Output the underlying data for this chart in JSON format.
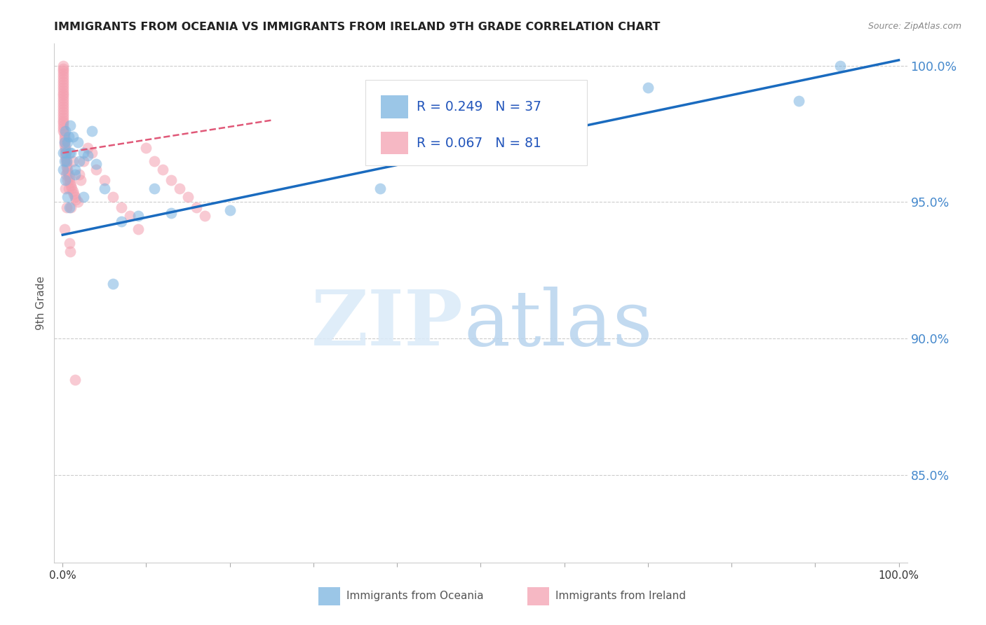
{
  "title": "IMMIGRANTS FROM OCEANIA VS IMMIGRANTS FROM IRELAND 9TH GRADE CORRELATION CHART",
  "source": "Source: ZipAtlas.com",
  "ylabel": "9th Grade",
  "ytick_labels": [
    "85.0%",
    "90.0%",
    "95.0%",
    "100.0%"
  ],
  "ytick_values": [
    0.85,
    0.9,
    0.95,
    1.0
  ],
  "xlim": [
    0.0,
    1.0
  ],
  "ylim": [
    0.818,
    1.008
  ],
  "legend_label1": "Immigrants from Oceania",
  "legend_label2": "Immigrants from Ireland",
  "R_oceania": 0.249,
  "N_oceania": 37,
  "R_ireland": 0.067,
  "N_ireland": 81,
  "color_oceania": "#7ab3e0",
  "color_ireland": "#f4a0b0",
  "color_line_oceania": "#1a6bbf",
  "color_line_ireland": "#e05878",
  "oceania_x": [
    0.002,
    0.003,
    0.004,
    0.005,
    0.006,
    0.007,
    0.008,
    0.009,
    0.01,
    0.012,
    0.015,
    0.018,
    0.02,
    0.025,
    0.03,
    0.04,
    0.05,
    0.06,
    0.07,
    0.09,
    0.11,
    0.13,
    0.2,
    0.38,
    0.6,
    0.7,
    0.88,
    0.93,
    0.001,
    0.001,
    0.002,
    0.003,
    0.006,
    0.008,
    0.015,
    0.025,
    0.035
  ],
  "oceania_y": [
    0.972,
    0.976,
    0.968,
    0.965,
    0.972,
    0.974,
    0.968,
    0.978,
    0.968,
    0.974,
    0.96,
    0.972,
    0.965,
    0.952,
    0.967,
    0.964,
    0.955,
    0.92,
    0.943,
    0.945,
    0.955,
    0.946,
    0.947,
    0.955,
    0.987,
    0.992,
    0.987,
    1.0,
    0.962,
    0.968,
    0.965,
    0.958,
    0.952,
    0.948,
    0.962,
    0.968,
    0.976
  ],
  "ireland_x": [
    0.001,
    0.001,
    0.001,
    0.001,
    0.001,
    0.001,
    0.001,
    0.001,
    0.001,
    0.001,
    0.001,
    0.001,
    0.001,
    0.001,
    0.001,
    0.001,
    0.001,
    0.001,
    0.001,
    0.001,
    0.001,
    0.001,
    0.001,
    0.001,
    0.001,
    0.002,
    0.002,
    0.002,
    0.002,
    0.002,
    0.003,
    0.003,
    0.003,
    0.003,
    0.004,
    0.004,
    0.005,
    0.005,
    0.006,
    0.006,
    0.007,
    0.008,
    0.008,
    0.009,
    0.01,
    0.011,
    0.012,
    0.013,
    0.015,
    0.016,
    0.018,
    0.02,
    0.022,
    0.025,
    0.03,
    0.035,
    0.04,
    0.05,
    0.06,
    0.07,
    0.08,
    0.09,
    0.1,
    0.11,
    0.12,
    0.13,
    0.14,
    0.15,
    0.16,
    0.17,
    0.002,
    0.003,
    0.004,
    0.005,
    0.006,
    0.007,
    0.008,
    0.009,
    0.01,
    0.012,
    0.015
  ],
  "ireland_y": [
    1.0,
    0.999,
    0.998,
    0.997,
    0.996,
    0.995,
    0.994,
    0.993,
    0.992,
    0.991,
    0.99,
    0.989,
    0.988,
    0.987,
    0.986,
    0.985,
    0.984,
    0.983,
    0.982,
    0.981,
    0.98,
    0.979,
    0.978,
    0.977,
    0.976,
    0.975,
    0.974,
    0.973,
    0.972,
    0.971,
    0.97,
    0.969,
    0.968,
    0.967,
    0.966,
    0.965,
    0.964,
    0.963,
    0.962,
    0.961,
    0.96,
    0.959,
    0.958,
    0.957,
    0.956,
    0.955,
    0.954,
    0.953,
    0.952,
    0.951,
    0.95,
    0.96,
    0.958,
    0.965,
    0.97,
    0.968,
    0.962,
    0.958,
    0.952,
    0.948,
    0.945,
    0.94,
    0.97,
    0.965,
    0.962,
    0.958,
    0.955,
    0.952,
    0.948,
    0.945,
    0.94,
    0.955,
    0.96,
    0.948,
    0.958,
    0.955,
    0.935,
    0.932,
    0.948,
    0.965,
    0.885
  ],
  "line_oceania_x0": 0.0,
  "line_oceania_x1": 1.0,
  "line_oceania_y0": 0.938,
  "line_oceania_y1": 1.002,
  "line_ireland_x0": 0.0,
  "line_ireland_x1": 0.25,
  "line_ireland_y0": 0.968,
  "line_ireland_y1": 0.98
}
